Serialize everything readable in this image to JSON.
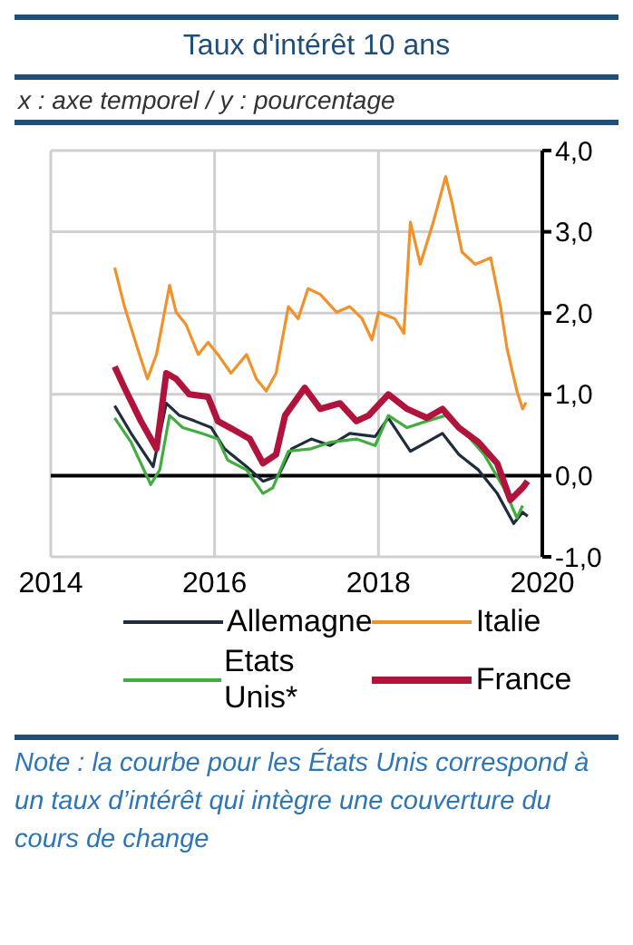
{
  "chart_data": {
    "type": "line",
    "title": "Taux d'intérêt 10 ans",
    "subtitle": "x : axe temporel / y : pourcentage",
    "xlim": [
      2014,
      2020
    ],
    "xticks": [
      2014,
      2016,
      2018,
      2020
    ],
    "ylim": [
      -1,
      4
    ],
    "yticks": [
      {
        "value": -1,
        "label": "-1,0"
      },
      {
        "value": 0,
        "label": "0,0"
      },
      {
        "value": 1,
        "label": "1,0"
      },
      {
        "value": 2,
        "label": "2,0"
      },
      {
        "value": 3,
        "label": "3,0"
      },
      {
        "value": 4,
        "label": "4,0"
      }
    ],
    "grid": true,
    "legend": "bottom",
    "ref_lines": [
      {
        "axis": "y",
        "value": 0,
        "color": "#000000"
      }
    ],
    "series": [
      {
        "name": "Allemagne",
        "color": "#1f2d3d",
        "x": [
          2014.78,
          2014.98,
          2015.25,
          2015.41,
          2015.57,
          2015.76,
          2015.96,
          2016.12,
          2016.39,
          2016.59,
          2016.78,
          2016.94,
          2017.18,
          2017.41,
          2017.65,
          2017.96,
          2018.12,
          2018.39,
          2018.59,
          2018.78,
          2018.98,
          2019.22,
          2019.45,
          2019.65,
          2019.76,
          2019.82
        ],
        "values": [
          0.86,
          0.52,
          0.11,
          0.89,
          0.74,
          0.67,
          0.59,
          0.33,
          0.11,
          -0.07,
          0.0,
          0.33,
          0.45,
          0.37,
          0.52,
          0.48,
          0.71,
          0.3,
          0.41,
          0.52,
          0.26,
          0.07,
          -0.22,
          -0.59,
          -0.45,
          -0.5
        ]
      },
      {
        "name": "Italie",
        "color": "#f0922b",
        "x": [
          2014.78,
          2014.9,
          2015.06,
          2015.18,
          2015.29,
          2015.45,
          2015.53,
          2015.65,
          2015.8,
          2015.92,
          2016.04,
          2016.2,
          2016.39,
          2016.51,
          2016.63,
          2016.75,
          2016.9,
          2017.02,
          2017.14,
          2017.29,
          2017.49,
          2017.65,
          2017.8,
          2017.92,
          2018.0,
          2018.2,
          2018.31,
          2018.39,
          2018.51,
          2018.67,
          2018.82,
          2018.9,
          2019.02,
          2019.18,
          2019.37,
          2019.49,
          2019.57,
          2019.69,
          2019.76,
          2019.8
        ],
        "values": [
          2.56,
          2.08,
          1.56,
          1.19,
          1.49,
          2.34,
          2.01,
          1.86,
          1.49,
          1.64,
          1.49,
          1.26,
          1.49,
          1.19,
          1.04,
          1.26,
          2.08,
          1.93,
          2.3,
          2.23,
          2.01,
          2.08,
          1.93,
          1.67,
          2.01,
          1.93,
          1.75,
          3.12,
          2.6,
          3.12,
          3.68,
          3.35,
          2.75,
          2.6,
          2.68,
          2.08,
          1.56,
          1.04,
          0.82,
          0.9
        ]
      },
      {
        "name": "Etats Unis*",
        "color": "#3fae3f",
        "x": [
          2014.78,
          2014.98,
          2015.22,
          2015.33,
          2015.45,
          2015.61,
          2015.84,
          2016.04,
          2016.16,
          2016.39,
          2016.59,
          2016.71,
          2016.9,
          2017.18,
          2017.41,
          2017.73,
          2017.96,
          2018.12,
          2018.35,
          2018.59,
          2018.82,
          2019.06,
          2019.29,
          2019.53,
          2019.69,
          2019.76
        ],
        "values": [
          0.71,
          0.41,
          -0.11,
          0.07,
          0.74,
          0.59,
          0.52,
          0.45,
          0.19,
          0.07,
          -0.22,
          -0.15,
          0.3,
          0.33,
          0.41,
          0.45,
          0.37,
          0.74,
          0.59,
          0.67,
          0.74,
          0.52,
          0.26,
          -0.15,
          -0.52,
          -0.37
        ]
      },
      {
        "name": "France",
        "color": "#b0143c",
        "x": [
          2014.78,
          2014.9,
          2015.1,
          2015.29,
          2015.41,
          2015.53,
          2015.69,
          2015.92,
          2016.04,
          2016.24,
          2016.43,
          2016.59,
          2016.75,
          2016.86,
          2017.1,
          2017.29,
          2017.53,
          2017.73,
          2017.88,
          2018.12,
          2018.35,
          2018.59,
          2018.78,
          2018.98,
          2019.22,
          2019.45,
          2019.61,
          2019.76,
          2019.82
        ],
        "values": [
          1.34,
          1.08,
          0.67,
          0.33,
          1.26,
          1.19,
          1.0,
          0.97,
          0.67,
          0.56,
          0.45,
          0.15,
          0.26,
          0.74,
          1.08,
          0.82,
          0.89,
          0.67,
          0.74,
          1.0,
          0.82,
          0.71,
          0.82,
          0.59,
          0.41,
          0.15,
          -0.3,
          -0.15,
          -0.07
        ]
      }
    ],
    "annotations": [
      "Note : la courbe pour les États Unis correspond à un taux d’intérêt qui intègre une couverture du cours de change"
    ]
  }
}
